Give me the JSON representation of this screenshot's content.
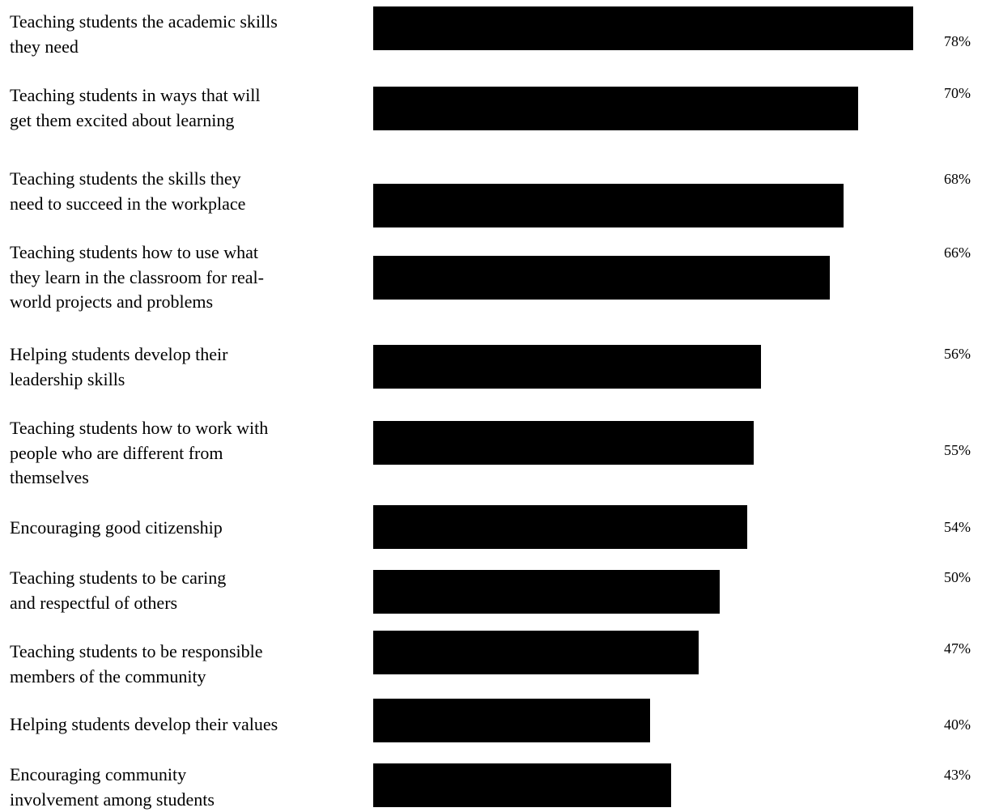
{
  "chart_data": {
    "type": "bar",
    "orientation": "horizontal",
    "categories": [
      "Teaching students the academic skills\nthey need",
      "Teaching students in ways that will\nget them excited about learning",
      "Teaching students the skills they\nneed to succeed in the workplace",
      "Teaching students how to use what\nthey learn in the classroom for real-\nworld projects and problems",
      "Helping students develop their\nleadership skills",
      "Teaching students how to work with\npeople who are different from\nthemselves",
      "Encouraging good citizenship",
      "Teaching students to be caring\nand respectful of others",
      "Teaching students to be responsible\nmembers of the community",
      "Helping students develop their values",
      "Encouraging community\ninvolvement among students"
    ],
    "values": [
      78,
      70,
      68,
      66,
      56,
      55,
      54,
      50,
      47,
      40,
      43
    ],
    "value_labels": [
      "78%",
      "70%",
      "68%",
      "66%",
      "56%",
      "55%",
      "54%",
      "50%",
      "47%",
      "40%",
      "43%"
    ],
    "bar_color": "#000000",
    "title": "",
    "xlabel": "",
    "ylabel": "",
    "grid": false
  }
}
